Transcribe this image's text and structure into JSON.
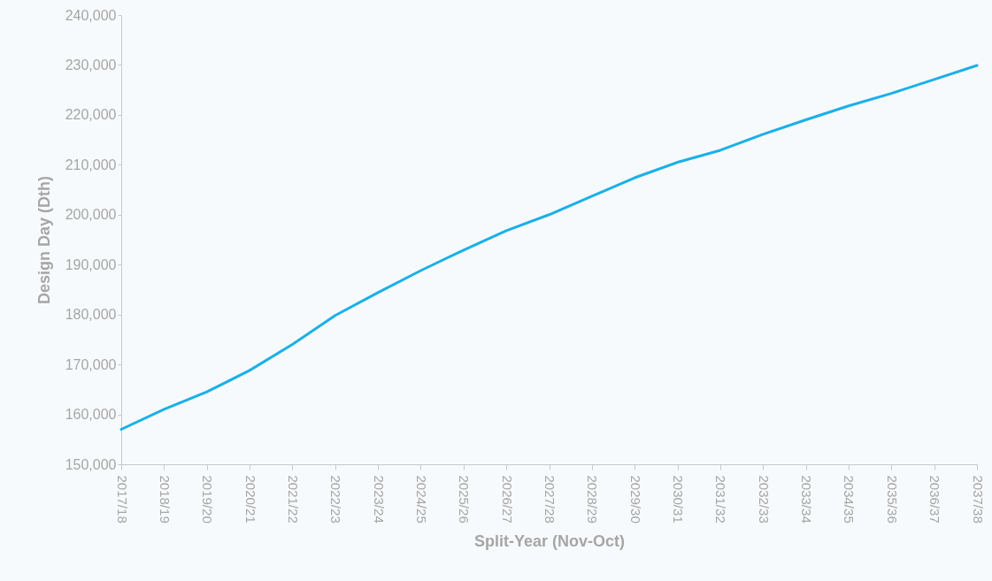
{
  "chart_data": {
    "type": "line",
    "xlabel": "Split-Year (Nov-Oct)",
    "ylabel": "Design Day (Dth)",
    "categories": [
      "2017/18",
      "2018/19",
      "2019/20",
      "2020/21",
      "2021/22",
      "2022/23",
      "2023/24",
      "2024/25",
      "2025/26",
      "2026/27",
      "2027/28",
      "2028/29",
      "2029/30",
      "2030/31",
      "2031/32",
      "2032/33",
      "2033/34",
      "2034/35",
      "2035/36",
      "2036/37",
      "2037/38"
    ],
    "series": [
      {
        "color": "#1ab0e8",
        "values": [
          157000,
          161000,
          164500,
          168800,
          174000,
          179800,
          184400,
          188800,
          192900,
          196800,
          200000,
          203700,
          207400,
          210500,
          212900,
          216100,
          219000,
          221800,
          224300,
          227100,
          229900
        ]
      }
    ],
    "ylim": [
      150000,
      240000
    ],
    "yticks": [
      {
        "value": 150000,
        "label": "150,000"
      },
      {
        "value": 160000,
        "label": "160,000"
      },
      {
        "value": 170000,
        "label": "170,000"
      },
      {
        "value": 180000,
        "label": "180,000"
      },
      {
        "value": 190000,
        "label": "190,000"
      },
      {
        "value": 200000,
        "label": "200,000"
      },
      {
        "value": 210000,
        "label": "210,000"
      },
      {
        "value": 220000,
        "label": "220,000"
      },
      {
        "value": 230000,
        "label": "230,000"
      },
      {
        "value": 240000,
        "label": "240,000"
      }
    ],
    "grid": false,
    "marker": "none",
    "line_style": "solid"
  }
}
